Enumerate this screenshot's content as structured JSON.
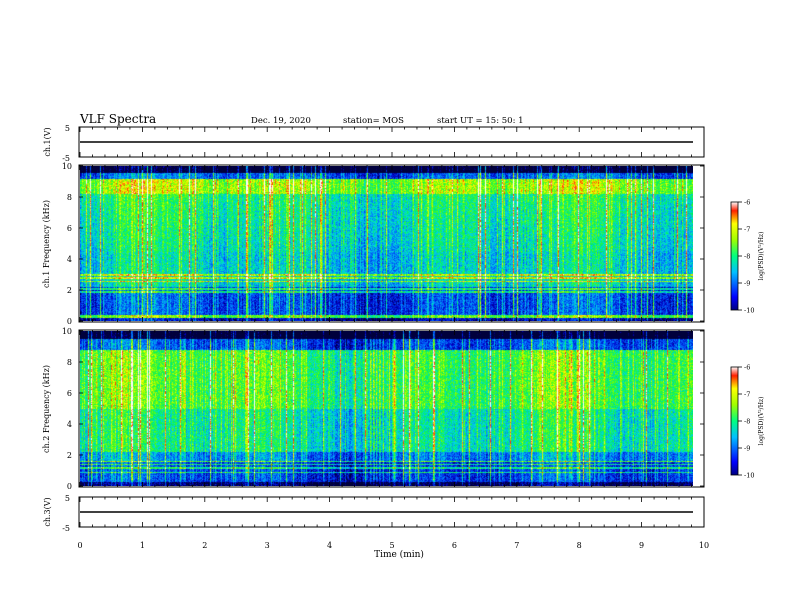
{
  "header": {
    "title": "VLF Spectra",
    "date": "Dec. 19, 2020",
    "station": "station= MOS",
    "start": "start  UT =   15: 50: 1"
  },
  "chart_data": [
    {
      "type": "line",
      "name": "ch1-waveform",
      "ylabel": "ch.1(V)",
      "ylim": [
        -5,
        5
      ],
      "yticks": [
        "5",
        "-5"
      ],
      "xlim": [
        0,
        10
      ],
      "level": 0
    },
    {
      "type": "heatmap",
      "name": "ch1-spectrogram",
      "ylabel": "ch.1 Frequency (kHz)",
      "ylim": [
        0,
        10
      ],
      "yticks": [
        "0",
        "2",
        "4",
        "6",
        "8",
        "10"
      ],
      "xlim": [
        0,
        10
      ],
      "data_end_min": 9.8,
      "colorbar": {
        "label": "log(PSD)(V²/Hz)",
        "range": [
          -10,
          -6
        ],
        "ticks": [
          "-6",
          "-7",
          "-8",
          "-9",
          "-10"
        ]
      }
    },
    {
      "type": "heatmap",
      "name": "ch2-spectrogram",
      "ylabel": "ch.2 Frequency (kHz)",
      "ylim": [
        0,
        10
      ],
      "yticks": [
        "0",
        "2",
        "4",
        "6",
        "8",
        "10"
      ],
      "xlim": [
        0,
        10
      ],
      "data_end_min": 9.8,
      "colorbar": {
        "label": "log(PSD)(V²/Hz)",
        "range": [
          -10,
          -6
        ],
        "ticks": [
          "-6",
          "-7",
          "-8",
          "-9",
          "-10"
        ]
      }
    },
    {
      "type": "line",
      "name": "ch3-waveform",
      "ylabel": "ch.3(V)",
      "ylim": [
        -5,
        5
      ],
      "yticks": [
        "5",
        "-5"
      ],
      "xlim": [
        0,
        10
      ],
      "level": 0
    }
  ],
  "xaxis": {
    "label": "Time  (min)",
    "ticks": [
      "0",
      "1",
      "2",
      "3",
      "4",
      "5",
      "6",
      "7",
      "8",
      "9",
      "10"
    ]
  }
}
